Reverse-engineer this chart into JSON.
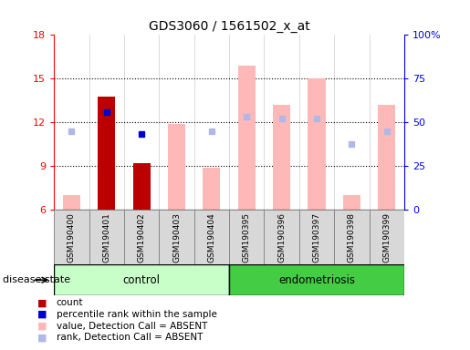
{
  "title": "GDS3060 / 1561502_x_at",
  "samples": [
    "GSM190400",
    "GSM190401",
    "GSM190402",
    "GSM190403",
    "GSM190404",
    "GSM190395",
    "GSM190396",
    "GSM190397",
    "GSM190398",
    "GSM190399"
  ],
  "ylim_left": [
    6,
    18
  ],
  "ylim_right": [
    0,
    100
  ],
  "yticks_left": [
    6,
    9,
    12,
    15,
    18
  ],
  "ytick_labels_left": [
    "6",
    "9",
    "12",
    "15",
    "18"
  ],
  "yticks_right": [
    0,
    25,
    50,
    75,
    100
  ],
  "ytick_labels_right": [
    "0",
    "25",
    "50",
    "75",
    "100%"
  ],
  "bar_color_red": "#bb0000",
  "bar_color_pink": "#ffb8b8",
  "dot_color_blue": "#0000cc",
  "dot_color_lightblue": "#b0b8e8",
  "control_color": "#c8ffc8",
  "endometriosis_color": "#44cc44",
  "pink_bars": [
    7.0,
    0,
    0,
    11.9,
    8.9,
    15.9,
    13.2,
    15.0,
    7.0,
    13.2
  ],
  "red_bars": [
    0,
    13.8,
    9.2,
    0,
    0,
    0,
    0,
    0,
    0,
    0
  ],
  "blue_dots": [
    0,
    12.7,
    11.2,
    0,
    0,
    0,
    0,
    0,
    0,
    0
  ],
  "lightblue_dots": [
    11.4,
    0,
    0,
    0,
    11.4,
    12.4,
    12.3,
    12.3,
    10.5,
    11.4
  ],
  "bar_base": 6,
  "legend_items": [
    {
      "label": "count",
      "color": "#bb0000"
    },
    {
      "label": "percentile rank within the sample",
      "color": "#0000cc"
    },
    {
      "label": "value, Detection Call = ABSENT",
      "color": "#ffb8b8"
    },
    {
      "label": "rank, Detection Call = ABSENT",
      "color": "#b0b8e8"
    }
  ]
}
